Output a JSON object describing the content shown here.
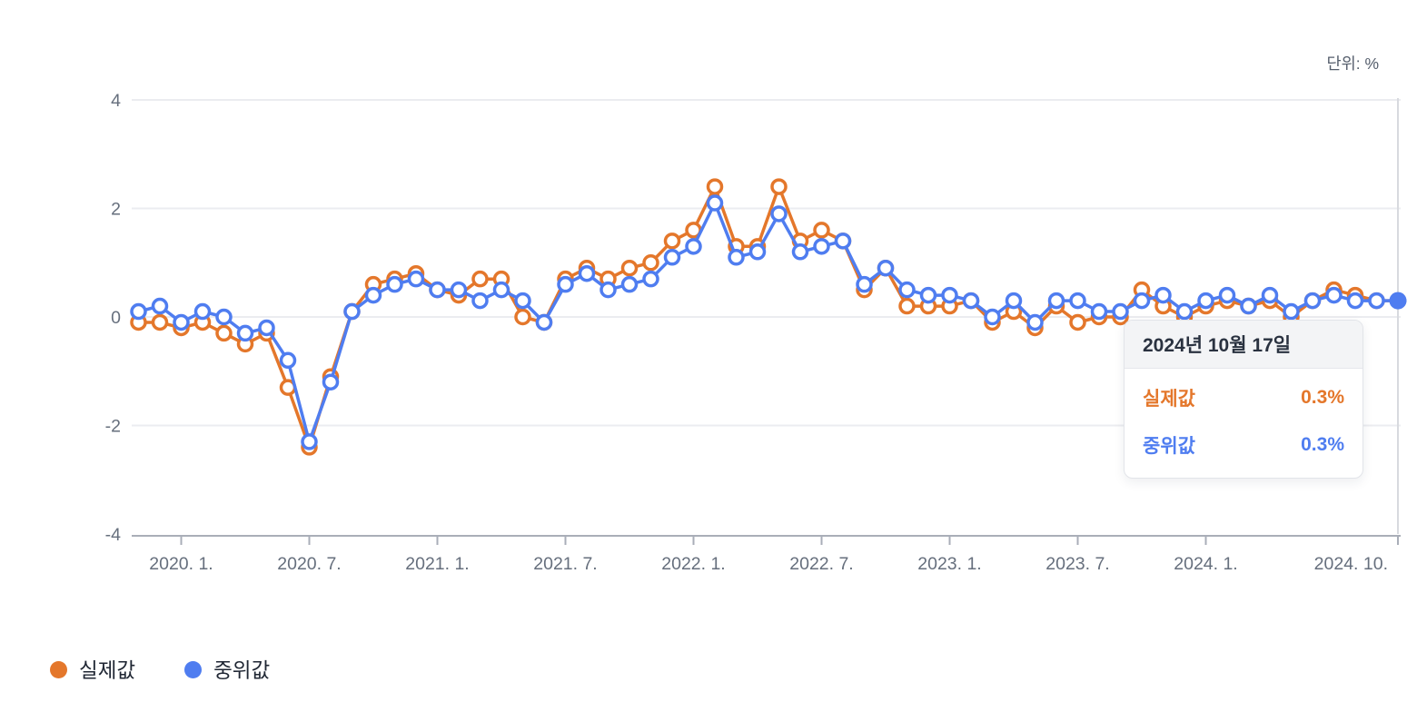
{
  "unit_label": "단위: %",
  "legend": {
    "items": [
      {
        "label": "실제값",
        "color": "#E4772B"
      },
      {
        "label": "중위값",
        "color": "#4F7DF0"
      }
    ]
  },
  "tooltip": {
    "date": "2024년 10월 17일",
    "rows": [
      {
        "label": "실제값",
        "value": "0.3%",
        "color": "#E4772B"
      },
      {
        "label": "중위값",
        "value": "0.3%",
        "color": "#4F7DF0"
      }
    ]
  },
  "chart_data": {
    "type": "line",
    "title": "",
    "xlabel": "",
    "ylabel": "%",
    "unit": "%",
    "ylim": [
      -4,
      4
    ],
    "y_ticks": [
      4,
      2,
      0,
      -2,
      -4
    ],
    "grid": true,
    "legend_position": "bottom-left",
    "x": [
      "2019-11",
      "2019-12",
      "2020-01",
      "2020-02",
      "2020-03",
      "2020-04",
      "2020-05",
      "2020-06",
      "2020-07",
      "2020-08",
      "2020-09",
      "2020-10",
      "2020-11",
      "2020-12",
      "2021-01",
      "2021-02",
      "2021-03",
      "2021-04",
      "2021-05",
      "2021-06",
      "2021-07",
      "2021-08",
      "2021-09",
      "2021-10",
      "2021-11",
      "2021-12",
      "2022-01",
      "2022-02",
      "2022-03",
      "2022-04",
      "2022-05",
      "2022-06",
      "2022-07",
      "2022-08",
      "2022-09",
      "2022-10",
      "2022-11",
      "2022-12",
      "2023-01",
      "2023-02",
      "2023-03",
      "2023-04",
      "2023-05",
      "2023-06",
      "2023-07",
      "2023-08",
      "2023-09",
      "2023-10",
      "2023-11",
      "2023-12",
      "2024-01",
      "2024-02",
      "2024-03",
      "2024-04",
      "2024-05",
      "2024-06",
      "2024-07",
      "2024-08",
      "2024-09",
      "2024-10"
    ],
    "x_tick_labels": [
      "2020. 1.",
      "2020. 7.",
      "2021. 1.",
      "2021. 7.",
      "2022. 1.",
      "2022. 7.",
      "2023. 1.",
      "2023. 7.",
      "2024. 1.",
      "2024. 10."
    ],
    "x_tick_month_index": [
      2,
      8,
      14,
      20,
      26,
      32,
      38,
      44,
      50,
      59
    ],
    "highlight_index": 59,
    "series": [
      {
        "name": "실제값",
        "color": "#E4772B",
        "marker": "open-circle",
        "values": [
          -0.1,
          -0.1,
          -0.2,
          -0.1,
          -0.3,
          -0.5,
          -0.3,
          -1.3,
          -2.4,
          -1.1,
          0.1,
          0.6,
          0.7,
          0.8,
          0.5,
          0.4,
          0.7,
          0.7,
          0.0,
          -0.1,
          0.7,
          0.9,
          0.7,
          0.9,
          1.0,
          1.4,
          1.6,
          2.4,
          1.3,
          1.3,
          2.4,
          1.4,
          1.6,
          1.4,
          0.5,
          0.9,
          0.2,
          0.2,
          0.2,
          0.3,
          -0.1,
          0.1,
          -0.2,
          0.2,
          -0.1,
          0.0,
          0.0,
          0.5,
          0.2,
          0.0,
          0.2,
          0.3,
          0.2,
          0.3,
          0.0,
          0.3,
          0.5,
          0.4,
          0.3,
          0.3
        ]
      },
      {
        "name": "중위값",
        "color": "#4F7DF0",
        "marker": "open-circle",
        "values": [
          0.1,
          0.2,
          -0.1,
          0.1,
          0.0,
          -0.3,
          -0.2,
          -0.8,
          -2.3,
          -1.2,
          0.1,
          0.4,
          0.6,
          0.7,
          0.5,
          0.5,
          0.3,
          0.5,
          0.3,
          -0.1,
          0.6,
          0.8,
          0.5,
          0.6,
          0.7,
          1.1,
          1.3,
          2.1,
          1.1,
          1.2,
          1.9,
          1.2,
          1.3,
          1.4,
          0.6,
          0.9,
          0.5,
          0.4,
          0.4,
          0.3,
          0.0,
          0.3,
          -0.1,
          0.3,
          0.3,
          0.1,
          0.1,
          0.3,
          0.4,
          0.1,
          0.3,
          0.4,
          0.2,
          0.4,
          0.1,
          0.3,
          0.4,
          0.3,
          0.3,
          0.3
        ]
      }
    ]
  },
  "style": {
    "gridline_color": "#ebecf0",
    "axis_color": "#a9aeb8",
    "tick_text_color": "#666f7d",
    "crosshair_color": "#d8dadf",
    "marker_fill": "#ffffff"
  }
}
